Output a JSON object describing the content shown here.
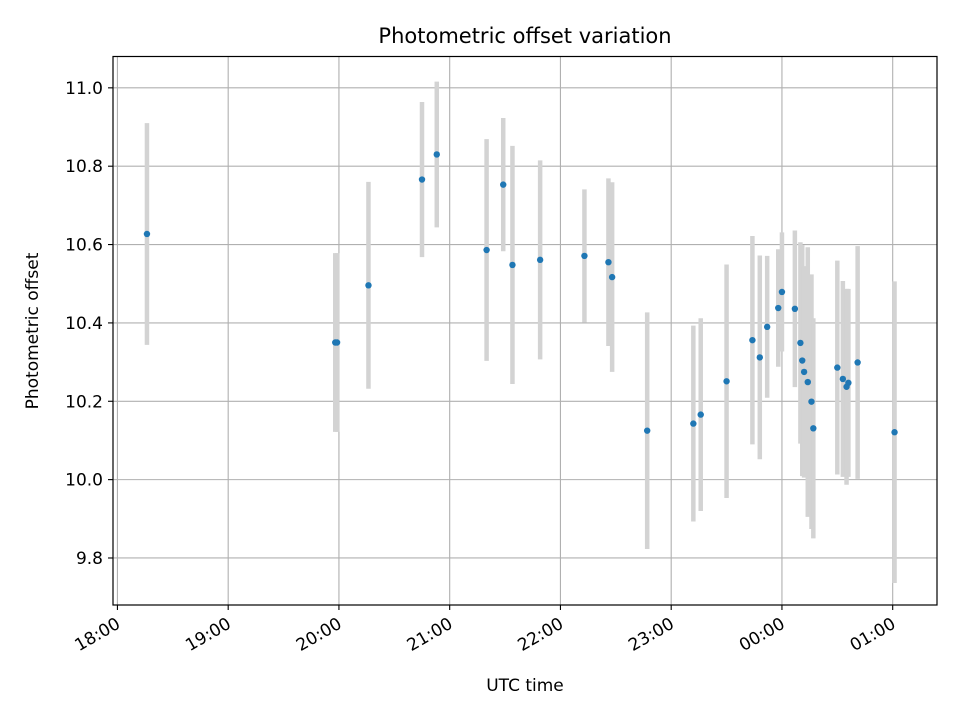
{
  "chart_data": {
    "type": "scatter",
    "title": "Photometric offset variation",
    "xlabel": "UTC time",
    "ylabel": "Photometric offset",
    "x_tick_labels": [
      "18:00",
      "19:00",
      "20:00",
      "21:00",
      "22:00",
      "23:00",
      "00:00",
      "01:00"
    ],
    "x_tick_hours": [
      18,
      19,
      20,
      21,
      22,
      23,
      24,
      25
    ],
    "y_ticks": [
      9.8,
      10.0,
      10.2,
      10.4,
      10.6,
      10.8,
      11.0
    ],
    "y_tick_labels": [
      "9.8",
      "10.0",
      "10.2",
      "10.4",
      "10.6",
      "10.8",
      "11.0"
    ],
    "xlim_hours": [
      17.96,
      25.4
    ],
    "ylim": [
      9.68,
      11.08
    ],
    "grid": true,
    "point_color": "#1f77b4",
    "errorbar_color": "#d3d3d3",
    "points": [
      {
        "t": "18:16",
        "y": 10.627,
        "err": 0.283
      },
      {
        "t": "19:58",
        "y": 10.35,
        "err": 0.228
      },
      {
        "t": "19:59",
        "y": 10.35,
        "err": 0.228
      },
      {
        "t": "20:16",
        "y": 10.496,
        "err": 0.264
      },
      {
        "t": "20:45",
        "y": 10.766,
        "err": 0.198
      },
      {
        "t": "20:53",
        "y": 10.83,
        "err": 0.186
      },
      {
        "t": "21:20",
        "y": 10.586,
        "err": 0.283
      },
      {
        "t": "21:29",
        "y": 10.753,
        "err": 0.17
      },
      {
        "t": "21:34",
        "y": 10.548,
        "err": 0.304
      },
      {
        "t": "21:49",
        "y": 10.561,
        "err": 0.254
      },
      {
        "t": "22:13",
        "y": 10.571,
        "err": 0.17
      },
      {
        "t": "22:26",
        "y": 10.555,
        "err": 0.214
      },
      {
        "t": "22:28",
        "y": 10.517,
        "err": 0.242
      },
      {
        "t": "22:47",
        "y": 10.125,
        "err": 0.302
      },
      {
        "t": "23:12",
        "y": 10.143,
        "err": 0.25
      },
      {
        "t": "23:16",
        "y": 10.166,
        "err": 0.246
      },
      {
        "t": "23:30",
        "y": 10.251,
        "err": 0.298
      },
      {
        "t": "23:44",
        "y": 10.356,
        "err": 0.266
      },
      {
        "t": "23:48",
        "y": 10.312,
        "err": 0.26
      },
      {
        "t": "23:52",
        "y": 10.39,
        "err": 0.181
      },
      {
        "t": "23:58",
        "y": 10.438,
        "err": 0.15
      },
      {
        "t": "00:00",
        "y": 10.479,
        "err": 0.152
      },
      {
        "t": "00:07",
        "y": 10.436,
        "err": 0.2
      },
      {
        "t": "00:10",
        "y": 10.349,
        "err": 0.257
      },
      {
        "t": "00:11",
        "y": 10.304,
        "err": 0.295
      },
      {
        "t": "00:12",
        "y": 10.275,
        "err": 0.27
      },
      {
        "t": "00:14",
        "y": 10.249,
        "err": 0.344
      },
      {
        "t": "00:16",
        "y": 10.199,
        "err": 0.325
      },
      {
        "t": "00:17",
        "y": 10.131,
        "err": 0.281
      },
      {
        "t": "00:30",
        "y": 10.286,
        "err": 0.273
      },
      {
        "t": "00:33",
        "y": 10.257,
        "err": 0.25
      },
      {
        "t": "00:35",
        "y": 10.237,
        "err": 0.25
      },
      {
        "t": "00:36",
        "y": 10.247,
        "err": 0.24
      },
      {
        "t": "00:41",
        "y": 10.299,
        "err": 0.297
      },
      {
        "t": "01:01",
        "y": 10.121,
        "err": 0.385
      }
    ]
  }
}
